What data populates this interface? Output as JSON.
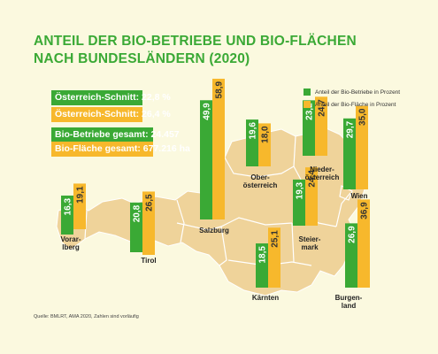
{
  "title_line1": "ANTEIL DER BIO-BETRIEBE UND BIO-FLÄCHEN",
  "title_line2": "NACH BUNDESLÄNDERN (2020)",
  "summary": {
    "betriebe_schnitt": "Österreich-Schnitt: 22,8 %",
    "flaeche_schnitt": "Österreich-Schnitt: 26,4 %",
    "betriebe_gesamt": "Bio-Betriebe gesamt: 24.457",
    "flaeche_gesamt": "Bio-Fläche gesamt: 677.216 ha"
  },
  "legend": {
    "betriebe": "Anteil der Bio-Betriebe in Prozent",
    "flaeche": "Anteil der Bio-Fläche in Prozent"
  },
  "source": "Quelle: BMLRT, AMA 2020, Zahlen sind vorläufig",
  "colors": {
    "betriebe": "#3aa935",
    "flaeche": "#f7b82c",
    "map_fill": "#efd39a",
    "background": "#fbf9df"
  },
  "chart_data": {
    "type": "bar",
    "categories": [
      "Vorarlberg",
      "Tirol",
      "Salzburg",
      "Oberösterreich",
      "Kärnten",
      "Steiermark",
      "Niederösterreich",
      "Wien",
      "Burgenland"
    ],
    "category_labels": [
      "Vorar-\nlberg",
      "Tirol",
      "Salzburg",
      "Ober-\nösterreich",
      "Kärnten",
      "Steier-\nmark",
      "Nieder-\nösterreich",
      "Wien",
      "Burgen-\nland"
    ],
    "series": [
      {
        "name": "Anteil der Bio-Betriebe in Prozent",
        "values": [
          16.3,
          20.8,
          49.9,
          19.6,
          18.5,
          19.3,
          23.2,
          29.7,
          26.9
        ],
        "labels": [
          "16,3",
          "20,8",
          "49,9",
          "19,6",
          "18,5",
          "19,3",
          "23,2",
          "29,7",
          "26,9"
        ]
      },
      {
        "name": "Anteil der Bio-Fläche in Prozent",
        "values": [
          19.1,
          26.5,
          58.9,
          18.0,
          25.1,
          24.4,
          24.7,
          35.0,
          36.9
        ],
        "labels": [
          "19,1",
          "26,5",
          "58,9",
          "18,0",
          "25,1",
          "24,4",
          "24,7",
          "35,0",
          "36,9"
        ]
      }
    ]
  }
}
